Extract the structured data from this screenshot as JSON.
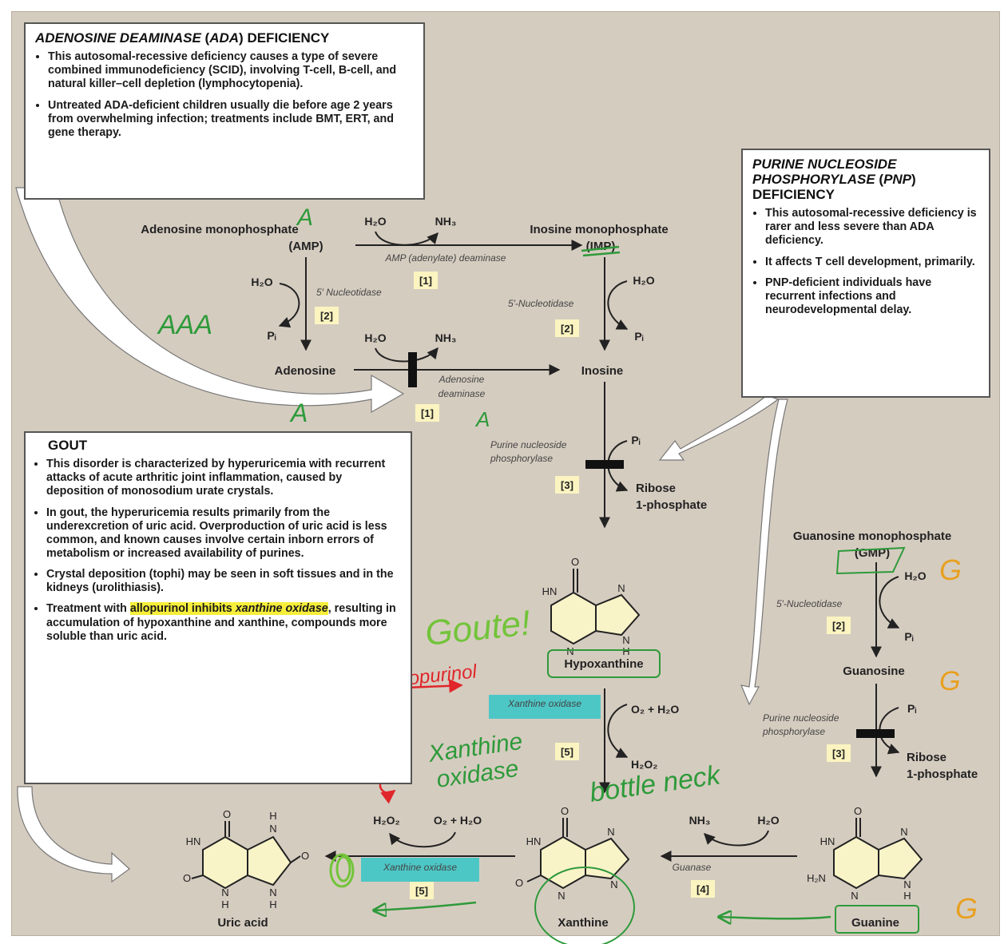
{
  "ada_box": {
    "title_italic": "ADENOSINE DEAMINASE",
    "title_paren": "ADA",
    "title_rest": "DEFICIENCY",
    "bullets": [
      "This autosomal-recessive deficiency causes a type of severe combined immunodeficiency (SCID), involving T-cell, B-cell, and natural killer–cell depletion (lymphocytopenia).",
      "Untreated ADA-deficient children usually die before age 2 years from overwhelming infection; treatments include BMT, ERT, and gene therapy."
    ]
  },
  "pnp_box": {
    "title_line1": "PURINE NUCLEOSIDE",
    "title_line2_italic": "PHOSPHORYLASE",
    "title_line2_paren": "PNP",
    "title_line3": "DEFICIENCY",
    "bullets": [
      "This autosomal-recessive deficiency is rarer and less severe than ADA deficiency.",
      "It affects T cell development, primarily.",
      "PNP-deficient individuals have recurrent infections and neurodevelopmental delay."
    ]
  },
  "gout_box": {
    "title": "GOUT",
    "bullets": [
      "This disorder is characterized by hyperuricemia with recurrent attacks of acute arthritic joint inflammation, caused by deposition of monosodium urate crystals.",
      "In gout, the hyperuricemia results primarily from the underexcretion of uric acid. Overproduction of uric acid is less common, and known causes involve certain inborn errors of metabolism or increased availability of purines.",
      "Crystal deposition (tophi) may be seen in soft tissues and in the kidneys (urolithiasis)."
    ],
    "treatment_prefix": "Treatment with ",
    "treatment_highlight1": "allopurinol inhibits ",
    "treatment_highlight2": "xanthine oxidase",
    "treatment_suffix": ", resulting in accumulation of hypoxanthine and xanthine, compounds more soluble than uric acid."
  },
  "compounds": {
    "amp": "Adenosine monophosphate",
    "amp_abbr": "(AMP)",
    "imp": "Inosine monophosphate",
    "imp_abbr": "(IMP)",
    "adenosine": "Adenosine",
    "inosine": "Inosine",
    "ribose1p": "Ribose",
    "ribose1p_b": "1-phosphate",
    "hypoxanthine": "Hypoxanthine",
    "gmp": "Guanosine monophosphate",
    "gmp_abbr": "(GMP)",
    "guanosine": "Guanosine",
    "guanine": "Guanine",
    "xanthine": "Xanthine",
    "uric_acid": "Uric acid"
  },
  "enzymes": {
    "amp_deaminase": "AMP (adenylate) deaminase",
    "nucleotidase_a": "5′ Nucleotidase",
    "nucleotidase": "5′-Nucleotidase",
    "adenosine_deaminase_1": "Adenosine",
    "adenosine_deaminase_2": "deaminase",
    "pnp_1": "Purine nucleoside",
    "pnp_2": "phosphorylase",
    "xanthine_oxidase": "Xanthine oxidase",
    "guanase": "Guanase"
  },
  "molecules": {
    "h2o": "H₂O",
    "nh3": "NH₃",
    "pi": "Pᵢ",
    "o2_h2o": "O₂ + H₂O",
    "h2o2": "H₂O₂"
  },
  "steps": {
    "s1": "[1]",
    "s2": "[2]",
    "s3": "[3]",
    "s4": "[4]",
    "s5": "[5]"
  },
  "atoms": {
    "o": "O",
    "n": "N",
    "h": "H",
    "hn": "HN",
    "h2n": "H₂N"
  },
  "handwriting": {
    "a": "A",
    "aaa": "AAA",
    "gouttext": "Goute!",
    "allopurinol": "Allopurinol",
    "xo_line1": "Xanthine",
    "xo_line2": "oxidase",
    "bottleneck": "bottle neck",
    "g": "G"
  },
  "colors": {
    "panel": "#d5ccc0",
    "highlight_yellow": "#f6ee3a",
    "highlight_cyan": "#3ec6c6",
    "ink_green": "#2e9a3a",
    "ink_red": "#e0262a",
    "ink_orange": "#e8a020",
    "ring_fill": "#f9f3c8"
  }
}
